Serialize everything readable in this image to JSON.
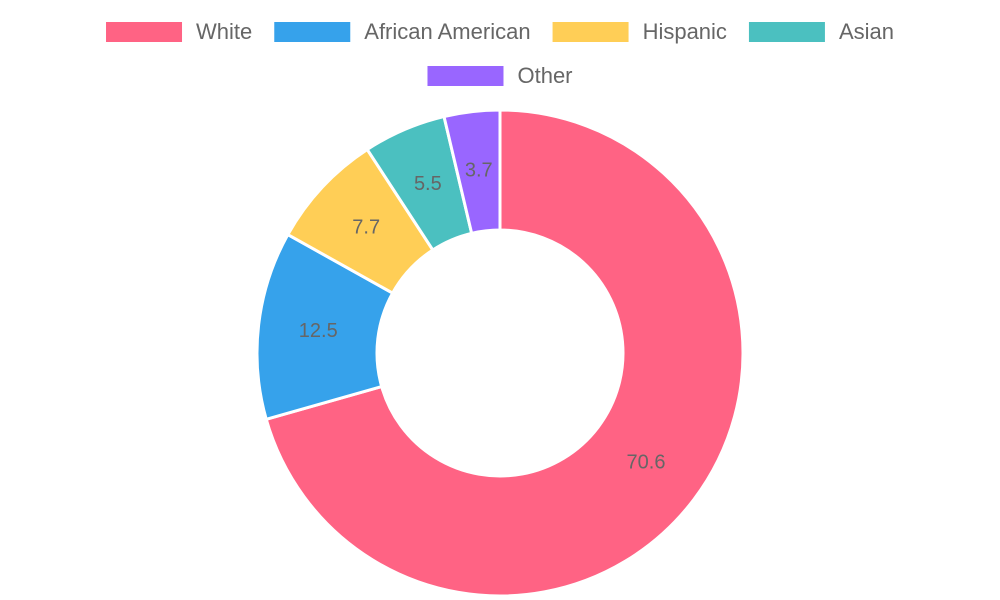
{
  "chart_data": {
    "type": "doughnut",
    "categories": [
      "White",
      "African American",
      "Hispanic",
      "Asian",
      "Other"
    ],
    "values": [
      70.6,
      12.5,
      7.7,
      5.5,
      3.7
    ],
    "colors": [
      "#ff6384",
      "#36a2eb",
      "#ffce56",
      "#4bc0c0",
      "#9966ff"
    ],
    "legend": "top"
  }
}
